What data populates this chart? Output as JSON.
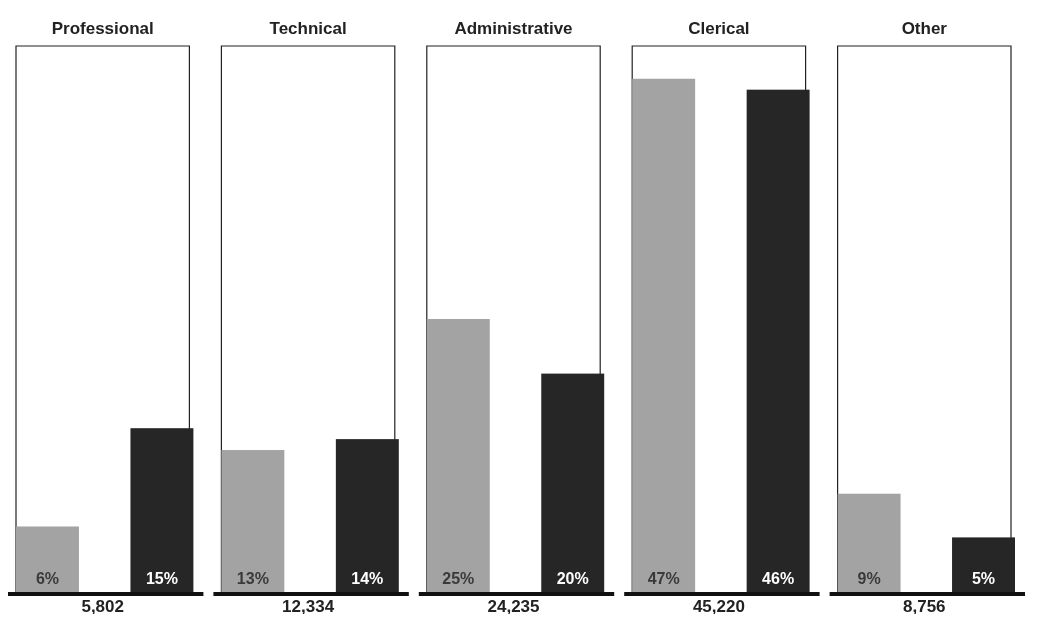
{
  "chart_data": [
    {
      "type": "bar",
      "title": "Professional",
      "categories": [
        null,
        null
      ],
      "values": [
        6,
        15
      ],
      "colors": [
        "#a3a3a3",
        "#262626"
      ],
      "value_labels": [
        "6%",
        "15%"
      ],
      "ylim": [
        0,
        50
      ],
      "xlabel": "5,802"
    },
    {
      "type": "bar",
      "title": "Technical",
      "categories": [
        null,
        null
      ],
      "values": [
        13,
        14
      ],
      "colors": [
        "#a3a3a3",
        "#262626"
      ],
      "value_labels": [
        "13%",
        "14%"
      ],
      "ylim": [
        0,
        50
      ],
      "xlabel": "12,334"
    },
    {
      "type": "bar",
      "title": "Administrative",
      "categories": [
        null,
        null
      ],
      "values": [
        25,
        20
      ],
      "colors": [
        "#a3a3a3",
        "#262626"
      ],
      "value_labels": [
        "25%",
        "20%"
      ],
      "ylim": [
        0,
        50
      ],
      "xlabel": "24,235"
    },
    {
      "type": "bar",
      "title": "Clerical",
      "categories": [
        null,
        null
      ],
      "values": [
        47,
        46
      ],
      "colors": [
        "#a3a3a3",
        "#262626"
      ],
      "value_labels": [
        "47%",
        "46%"
      ],
      "ylim": [
        0,
        50
      ],
      "xlabel": "45,220"
    },
    {
      "type": "bar",
      "title": "Other",
      "categories": [
        null,
        null
      ],
      "values": [
        9,
        5
      ],
      "colors": [
        "#a3a3a3",
        "#262626"
      ],
      "value_labels": [
        "9%",
        "5%"
      ],
      "ylim": [
        0,
        50
      ],
      "xlabel": "8,756"
    }
  ]
}
